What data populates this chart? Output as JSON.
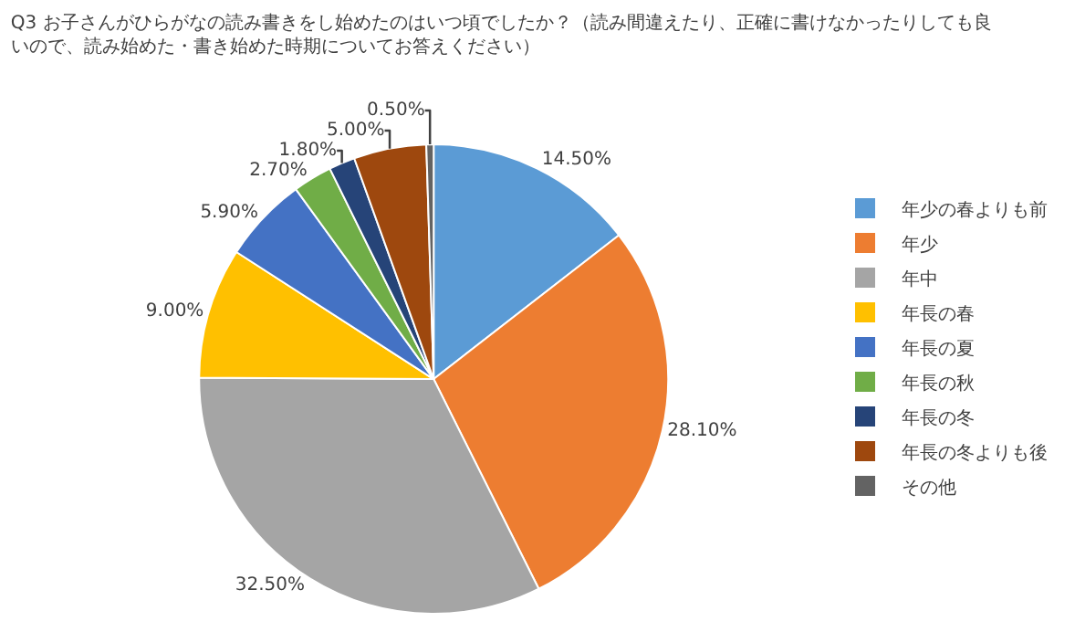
{
  "chart_data": {
    "type": "pie",
    "title": "Q3 お子さんがひらがなの読み書きをし始めたのはいつ頃でしたか？（読み間違えたり、正確に書けなかったりしても良いので、読み始めた・書き始めた時期についてお答えください）",
    "categories": [
      "年少の春よりも前",
      "年少",
      "年中",
      "年長の春",
      "年長の夏",
      "年長の秋",
      "年長の冬",
      "年長の冬よりも後",
      "その他"
    ],
    "values": [
      14.5,
      28.1,
      32.5,
      9.0,
      5.9,
      2.7,
      1.8,
      5.0,
      0.5
    ],
    "value_labels": [
      "14.50%",
      "28.10%",
      "32.50%",
      "9.00%",
      "5.90%",
      "2.70%",
      "1.80%",
      "5.00%",
      "0.50%"
    ],
    "colors": [
      "#5b9bd5",
      "#ed7d31",
      "#a5a5a5",
      "#ffc000",
      "#4472c4",
      "#70ad47",
      "#264478",
      "#9e480e",
      "#636363"
    ],
    "legend": "right"
  }
}
